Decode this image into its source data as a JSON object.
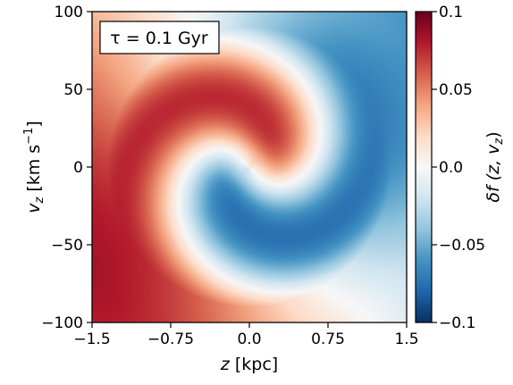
{
  "chart_data": {
    "type": "heatmap",
    "annotation": "τ = 0.1 Gyr",
    "x": {
      "label_main": "z",
      "label_unit": " [kpc]",
      "range": [
        -1.5,
        1.5
      ],
      "ticks": [
        -1.5,
        -0.75,
        0.0,
        0.75,
        1.5
      ],
      "tick_labels": [
        "−1.5",
        "−0.75",
        "0.0",
        "0.75",
        "1.5"
      ]
    },
    "y": {
      "label_main": "v",
      "label_sub": "z",
      "label_unit": " [km s",
      "label_sup": "−1",
      "label_close": "]",
      "range": [
        -100,
        100
      ],
      "ticks": [
        -100,
        -50,
        0,
        50,
        100
      ],
      "tick_labels": [
        "−100",
        "−50",
        "0",
        "50",
        "100"
      ]
    },
    "colorbar": {
      "label": "δf (z, v",
      "label_sub": "z",
      "label_close": ")",
      "range": [
        -0.1,
        0.1
      ],
      "ticks": [
        -0.1,
        -0.05,
        0.0,
        0.05,
        0.1
      ],
      "tick_labels": [
        "−0.1",
        "−0.05",
        "0.0",
        "0.05",
        "0.1"
      ],
      "colormap": "RdBu_r",
      "colors": [
        "#053061",
        "#2166ac",
        "#4393c3",
        "#92c5de",
        "#d1e5f0",
        "#f7f7f7",
        "#fddbc7",
        "#f4a582",
        "#d6604d",
        "#b2182b",
        "#67001f"
      ]
    },
    "pattern": "phase-space spiral",
    "grid": false
  }
}
